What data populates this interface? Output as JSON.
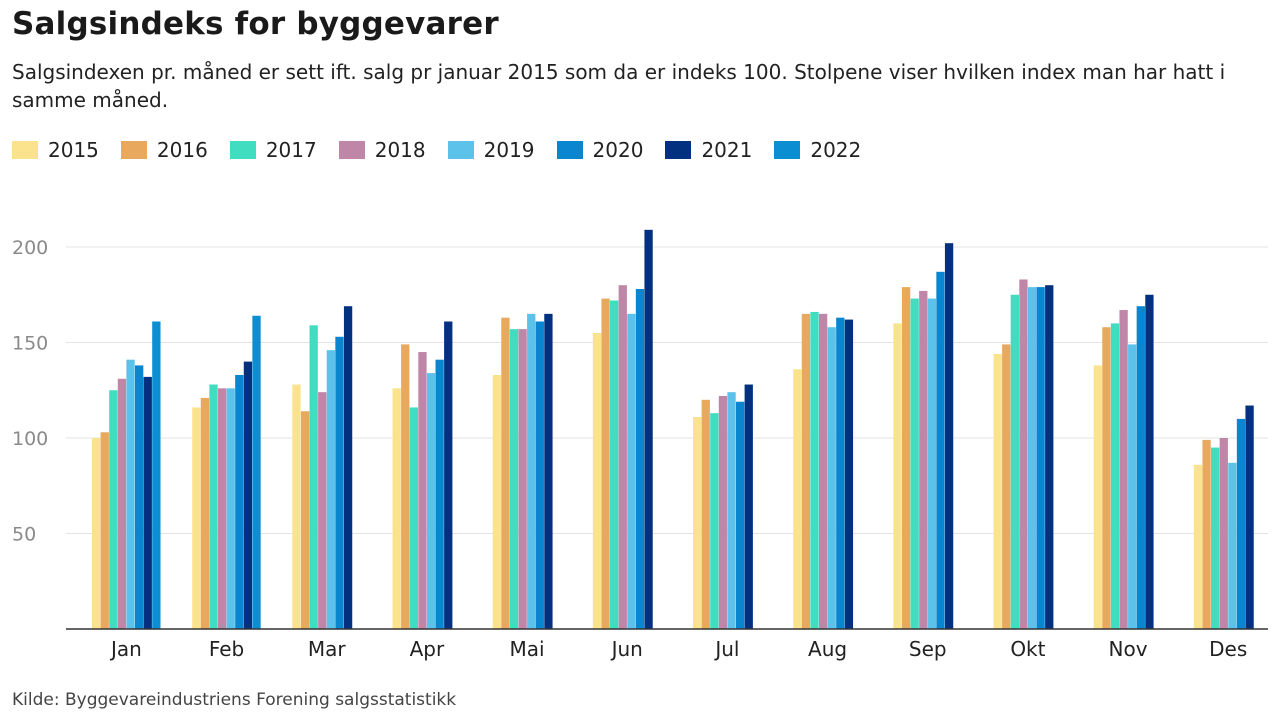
{
  "title": "Salgsindeks for byggevarer",
  "subtitle": "Salgsindexen pr. måned er sett ift. salg pr januar 2015 som da er indeks 100. Stolpene viser hvilken index man har hatt i samme måned.",
  "source": "Kilde: Byggevareindustriens Forening salgsstatistikk",
  "chart_data": {
    "type": "bar",
    "categories": [
      "Jan",
      "Feb",
      "Mar",
      "Apr",
      "Mai",
      "Jun",
      "Jul",
      "Aug",
      "Sep",
      "Okt",
      "Nov",
      "Des"
    ],
    "ylim": [
      0,
      200
    ],
    "yticks": [
      50,
      100,
      150,
      200
    ],
    "grid": true,
    "legend_position": "top-left",
    "series": [
      {
        "name": "2015",
        "color": "#FBE38E",
        "values": [
          100,
          116,
          128,
          126,
          133,
          155,
          111,
          136,
          160,
          144,
          138,
          86
        ]
      },
      {
        "name": "2016",
        "color": "#E8A85E",
        "values": [
          103,
          121,
          114,
          149,
          163,
          173,
          120,
          165,
          179,
          149,
          158,
          99
        ]
      },
      {
        "name": "2017",
        "color": "#40DDC1",
        "values": [
          125,
          128,
          159,
          116,
          157,
          172,
          113,
          166,
          173,
          175,
          160,
          95
        ]
      },
      {
        "name": "2018",
        "color": "#C086A8",
        "values": [
          131,
          126,
          124,
          145,
          157,
          180,
          122,
          165,
          177,
          183,
          167,
          100
        ]
      },
      {
        "name": "2019",
        "color": "#5CC2EA",
        "values": [
          141,
          126,
          146,
          134,
          165,
          165,
          124,
          158,
          173,
          179,
          149,
          87
        ]
      },
      {
        "name": "2020",
        "color": "#0A86D0",
        "values": [
          138,
          133,
          153,
          141,
          161,
          178,
          119,
          163,
          187,
          179,
          169,
          110
        ]
      },
      {
        "name": "2021",
        "color": "#04317F",
        "values": [
          132,
          140,
          169,
          161,
          165,
          209,
          128,
          162,
          202,
          180,
          175,
          117
        ]
      },
      {
        "name": "2022",
        "color": "#0B8ED2",
        "values": [
          161,
          164,
          null,
          null,
          null,
          null,
          null,
          null,
          null,
          null,
          null,
          null
        ]
      }
    ]
  }
}
